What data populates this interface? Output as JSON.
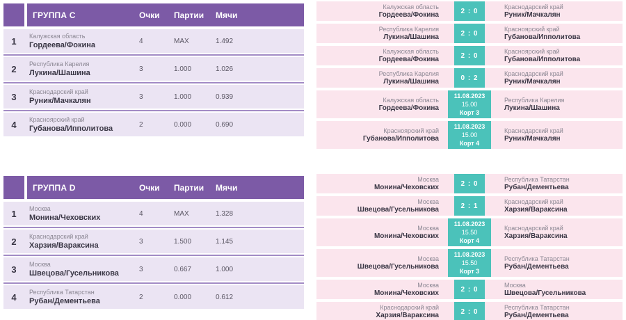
{
  "colors": {
    "header_purple": "#7c5aa6",
    "row_lavender": "#ebe4f3",
    "separator_purple": "#a28bc5",
    "match_pink": "#fbe5ed",
    "score_teal": "#4bc2ba",
    "name_text": "#3a3745",
    "region_text": "#8b8793",
    "value_text": "#5a5663"
  },
  "groups": [
    {
      "table": {
        "title": "ГРУППА C",
        "columns": [
          "Очки",
          "Партии",
          "Мячи"
        ],
        "rows": [
          {
            "pos": "1",
            "region": "Калужская область",
            "team": "Гордеева/Фокина",
            "points": "4",
            "sets": "MAX",
            "balls": "1.492"
          },
          {
            "pos": "2",
            "region": "Республика Карелия",
            "team": "Лукина/Шашина",
            "points": "3",
            "sets": "1.000",
            "balls": "1.026"
          },
          {
            "pos": "3",
            "region": "Краснодарский край",
            "team": "Руник/Мачкалян",
            "points": "3",
            "sets": "1.000",
            "balls": "0.939"
          },
          {
            "pos": "4",
            "region": "Красноярский край",
            "team": "Губанова/Ипполитова",
            "points": "2",
            "sets": "0.000",
            "balls": "0.690"
          }
        ]
      },
      "matches": [
        {
          "home_region": "Калужская область",
          "home_team": "Гордеева/Фокина",
          "score": "2 : 0",
          "away_region": "Краснодарский край",
          "away_team": "Руник/Мачкалян"
        },
        {
          "home_region": "Республика Карелия",
          "home_team": "Лукина/Шашина",
          "score": "2 : 0",
          "away_region": "Красноярский край",
          "away_team": "Губанова/Ипполитова"
        },
        {
          "home_region": "Калужская область",
          "home_team": "Гордеева/Фокина",
          "score": "2 : 0",
          "away_region": "Красноярский край",
          "away_team": "Губанова/Ипполитова"
        },
        {
          "home_region": "Республика Карелия",
          "home_team": "Лукина/Шашина",
          "score": "0 : 2",
          "away_region": "Краснодарский край",
          "away_team": "Руник/Мачкалян"
        },
        {
          "home_region": "Калужская область",
          "home_team": "Гордеева/Фокина",
          "schedule": {
            "date": "11.08.2023",
            "time": "15.00",
            "court": "Корт 3"
          },
          "away_region": "Республика Карелия",
          "away_team": "Лукина/Шашина"
        },
        {
          "home_region": "Красноярский край",
          "home_team": "Губанова/Ипполитова",
          "schedule": {
            "date": "11.08.2023",
            "time": "15.00",
            "court": "Корт 4"
          },
          "away_region": "Краснодарский край",
          "away_team": "Руник/Мачкалян"
        }
      ]
    },
    {
      "table": {
        "title": "ГРУППА D",
        "columns": [
          "Очки",
          "Партии",
          "Мячи"
        ],
        "rows": [
          {
            "pos": "1",
            "region": "Москва",
            "team": "Монина/Чеховских",
            "points": "4",
            "sets": "MAX",
            "balls": "1.328"
          },
          {
            "pos": "2",
            "region": "Краснодарский край",
            "team": "Харзия/Вараксина",
            "points": "3",
            "sets": "1.500",
            "balls": "1.145"
          },
          {
            "pos": "3",
            "region": "Москва",
            "team": "Швецова/Гусельникова",
            "points": "3",
            "sets": "0.667",
            "balls": "1.000"
          },
          {
            "pos": "4",
            "region": "Республика Татарстан",
            "team": "Рубан/Дементьева",
            "points": "2",
            "sets": "0.000",
            "balls": "0.612"
          }
        ]
      },
      "matches": [
        {
          "home_region": "Москва",
          "home_team": "Монина/Чеховских",
          "score": "2 : 0",
          "away_region": "Республика Татарстан",
          "away_team": "Рубан/Дементьева"
        },
        {
          "home_region": "Москва",
          "home_team": "Швецова/Гусельникова",
          "score": "2 : 1",
          "away_region": "Краснодарский край",
          "away_team": "Харзия/Вараксина"
        },
        {
          "home_region": "Москва",
          "home_team": "Монина/Чеховских",
          "schedule": {
            "date": "11.08.2023",
            "time": "15.50",
            "court": "Корт 4"
          },
          "away_region": "Краснодарский край",
          "away_team": "Харзия/Вараксина"
        },
        {
          "home_region": "Москва",
          "home_team": "Швецова/Гусельникова",
          "schedule": {
            "date": "11.08.2023",
            "time": "15.50",
            "court": "Корт 3"
          },
          "away_region": "Республика Татарстан",
          "away_team": "Рубан/Дементьева"
        },
        {
          "home_region": "Москва",
          "home_team": "Монина/Чеховских",
          "score": "2 : 0",
          "away_region": "Москва",
          "away_team": "Швецова/Гусельникова"
        },
        {
          "home_region": "Краснодарский край",
          "home_team": "Харзия/Вараксина",
          "score": "2 : 0",
          "away_region": "Республика Татарстан",
          "away_team": "Рубан/Дементьева"
        }
      ]
    }
  ]
}
